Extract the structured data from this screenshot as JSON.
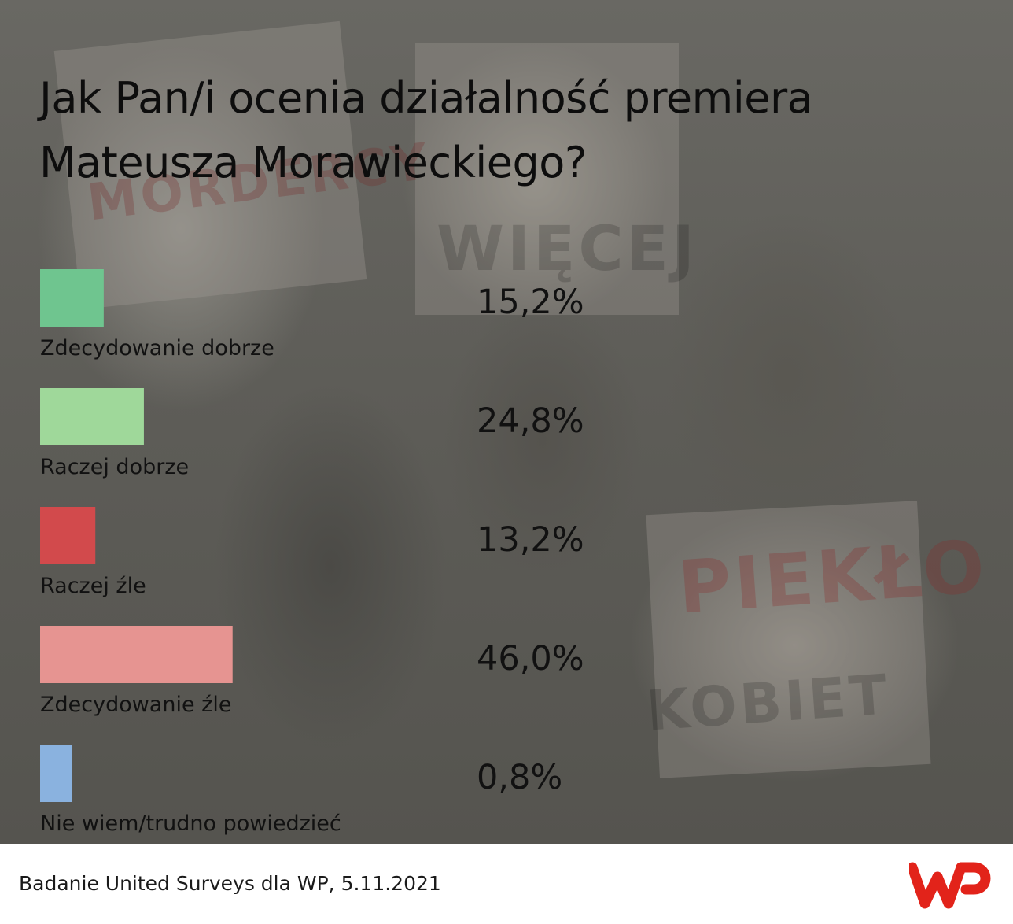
{
  "title": "Jak Pan/i ocenia działalność premiera Mateusza Morawieckiego?",
  "title_lines": [
    "Jak Pan/i ocenia działalność premiera",
    "Mateusza Morawieckiego?"
  ],
  "source": "Badanie United Surveys dla WP, 5.11.2021",
  "logo": {
    "icon": "wp-logo-icon",
    "color": "#e2231a"
  },
  "chart_data": {
    "type": "bar",
    "orientation": "horizontal",
    "title": "Jak Pan/i ocenia działalność premiera Mateusza Morawieckiego?",
    "unit": "%",
    "categories": [
      "Zdecydowanie dobrze",
      "Raczej dobrze",
      "Raczej źle",
      "Zdecydowanie źle",
      "Nie wiem/trudno powiedzieć"
    ],
    "values": [
      15.2,
      24.8,
      13.2,
      46.0,
      0.8
    ],
    "value_labels": [
      "15,2%",
      "24,8%",
      "13,2%",
      "46,0%",
      "0,8%"
    ],
    "colors": [
      "#6fc58f",
      "#9fd89a",
      "#d24a4c",
      "#e69491",
      "#8ab2df"
    ],
    "xlabel": "",
    "ylabel": "",
    "grid": false,
    "legend": "none"
  }
}
